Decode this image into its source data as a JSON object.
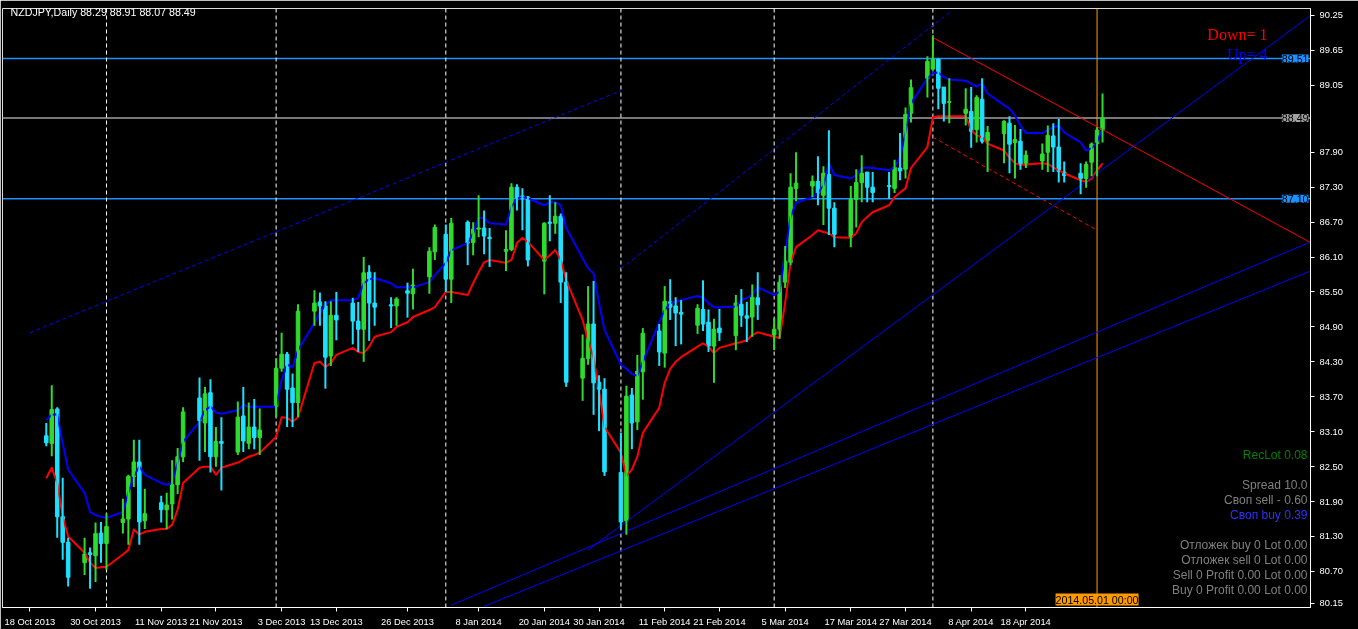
{
  "chart_data": {
    "type": "candlestick",
    "title": "NZDJPY,Daily 88.29 88.91 88.07 88.49",
    "x": [
      "2013-10-21",
      "2013-10-22",
      "2013-10-23",
      "2013-10-24",
      "2013-10-25",
      "2013-10-28",
      "2013-10-29",
      "2013-10-30",
      "2013-10-31",
      "2013-11-01",
      "2013-11-04",
      "2013-11-05",
      "2013-11-06",
      "2013-11-07",
      "2013-11-08",
      "2013-11-11",
      "2013-11-12",
      "2013-11-13",
      "2013-11-14",
      "2013-11-15",
      "2013-11-18",
      "2013-11-19",
      "2013-11-20",
      "2013-11-21",
      "2013-11-22",
      "2013-11-25",
      "2013-11-26",
      "2013-11-27",
      "2013-11-28",
      "2013-11-29",
      "2013-12-02",
      "2013-12-03",
      "2013-12-04",
      "2013-12-05",
      "2013-12-06",
      "2013-12-09",
      "2013-12-10",
      "2013-12-11",
      "2013-12-12",
      "2013-12-13",
      "2013-12-16",
      "2013-12-17",
      "2013-12-18",
      "2013-12-19",
      "2013-12-20",
      "2013-12-23",
      "2013-12-24",
      "2013-12-26",
      "2013-12-27",
      "2013-12-30",
      "2013-12-31",
      "2014-01-02",
      "2014-01-03",
      "2014-01-06",
      "2014-01-07",
      "2014-01-08",
      "2014-01-09",
      "2014-01-10",
      "2014-01-13",
      "2014-01-14",
      "2014-01-15",
      "2014-01-16",
      "2014-01-17",
      "2014-01-20",
      "2014-01-21",
      "2014-01-22",
      "2014-01-23",
      "2014-01-24",
      "2014-01-27",
      "2014-01-28",
      "2014-01-29",
      "2014-01-30",
      "2014-01-31",
      "2014-02-03",
      "2014-02-04",
      "2014-02-05",
      "2014-02-06",
      "2014-02-07",
      "2014-02-10",
      "2014-02-11",
      "2014-02-12",
      "2014-02-13",
      "2014-02-14",
      "2014-02-17",
      "2014-02-18",
      "2014-02-19",
      "2014-02-20",
      "2014-02-21",
      "2014-02-24",
      "2014-02-25",
      "2014-02-26",
      "2014-02-27",
      "2014-02-28",
      "2014-03-03",
      "2014-03-04",
      "2014-03-05",
      "2014-03-06",
      "2014-03-07",
      "2014-03-10",
      "2014-03-11",
      "2014-03-12",
      "2014-03-13",
      "2014-03-14",
      "2014-03-17",
      "2014-03-18",
      "2014-03-19",
      "2014-03-20",
      "2014-03-21",
      "2014-03-24",
      "2014-03-25",
      "2014-03-26",
      "2014-03-27",
      "2014-03-28",
      "2014-03-31",
      "2014-04-01",
      "2014-04-02",
      "2014-04-03",
      "2014-04-04",
      "2014-04-07",
      "2014-04-08",
      "2014-04-09",
      "2014-04-10",
      "2014-04-11",
      "2014-04-14",
      "2014-04-15",
      "2014-04-16",
      "2014-04-17",
      "2014-04-18",
      "2014-04-21",
      "2014-04-22",
      "2014-04-23",
      "2014-04-24",
      "2014-04-25",
      "2014-04-28",
      "2014-04-29",
      "2014-04-30",
      "2014-05-01",
      "2014-05-02"
    ],
    "ohlc": [
      [
        83.03,
        83.25,
        82.85,
        82.91
      ],
      [
        82.9,
        83.9,
        82.68,
        83.48
      ],
      [
        83.49,
        83.52,
        81.28,
        81.64
      ],
      [
        81.64,
        82.31,
        80.9,
        81.2
      ],
      [
        81.2,
        81.28,
        80.44,
        80.6
      ],
      [
        80.85,
        81.28,
        80.64,
        81.0
      ],
      [
        81.02,
        81.11,
        80.4,
        80.99
      ],
      [
        80.97,
        81.54,
        80.52,
        81.35
      ],
      [
        81.36,
        81.55,
        80.85,
        81.18
      ],
      [
        81.18,
        81.7,
        80.73,
        81.47
      ],
      [
        81.54,
        81.95,
        81.35,
        81.6
      ],
      [
        81.6,
        82.36,
        81.16,
        82.33
      ],
      [
        82.33,
        82.96,
        82.15,
        82.58
      ],
      [
        82.58,
        82.96,
        81.16,
        81.55
      ],
      [
        81.57,
        82.12,
        81.43,
        81.69
      ],
      [
        81.88,
        82.0,
        81.54,
        81.76
      ],
      [
        81.76,
        82.05,
        81.43,
        81.84
      ],
      [
        81.86,
        82.61,
        81.59,
        82.19
      ],
      [
        82.19,
        82.82,
        82.03,
        82.67
      ],
      [
        82.67,
        83.52,
        82.58,
        83.44
      ],
      [
        83.68,
        84.03,
        82.6,
        83.29
      ],
      [
        83.25,
        83.87,
        82.75,
        83.75
      ],
      [
        83.77,
        84.0,
        82.4,
        82.67
      ],
      [
        82.67,
        83.18,
        82.5,
        82.93
      ],
      [
        82.93,
        83.35,
        82.09,
        82.9
      ],
      [
        82.75,
        83.62,
        82.7,
        83.35
      ],
      [
        83.37,
        83.87,
        82.75,
        82.94
      ],
      [
        82.9,
        83.6,
        82.8,
        83.18
      ],
      [
        83.18,
        83.66,
        82.8,
        83.0
      ],
      [
        83.0,
        83.5,
        82.7,
        83.13
      ],
      [
        83.53,
        84.36,
        83.35,
        84.19
      ],
      [
        84.19,
        84.8,
        84.13,
        84.43
      ],
      [
        84.43,
        84.47,
        83.18,
        83.83
      ],
      [
        83.85,
        84.1,
        83.18,
        83.6
      ],
      [
        83.6,
        85.29,
        83.35,
        85.17
      ],
      [
        85.17,
        85.53,
        84.92,
        85.31
      ],
      [
        85.33,
        85.49,
        84.92,
        85.26
      ],
      [
        85.26,
        85.34,
        83.84,
        84.38
      ],
      [
        84.4,
        85.34,
        84.23,
        85.1
      ],
      [
        85.1,
        85.5,
        84.67,
        85.02
      ],
      [
        85.31,
        85.4,
        84.6,
        85.0
      ],
      [
        85.0,
        85.33,
        84.47,
        84.86
      ],
      [
        84.86,
        86.1,
        84.3,
        85.83
      ],
      [
        85.84,
        85.96,
        84.66,
        85.31
      ],
      [
        85.31,
        85.84,
        84.92,
        85.24
      ],
      [
        85.28,
        85.41,
        84.88,
        85.26
      ],
      [
        85.26,
        85.41,
        84.92,
        85.38
      ],
      [
        85.52,
        85.66,
        85.06,
        85.48
      ],
      [
        85.47,
        85.9,
        85.2,
        85.62
      ],
      [
        85.76,
        86.27,
        85.47,
        86.2
      ],
      [
        86.19,
        86.66,
        86.05,
        86.61
      ],
      [
        86.49,
        86.66,
        85.5,
        85.72
      ],
      [
        85.72,
        86.77,
        85.31,
        86.68
      ],
      [
        86.7,
        86.73,
        85.96,
        86.34
      ],
      [
        86.35,
        86.7,
        86.13,
        86.58
      ],
      [
        86.58,
        87.16,
        86.44,
        86.6
      ],
      [
        86.6,
        86.9,
        86.15,
        86.46
      ],
      [
        86.44,
        86.6,
        85.93,
        86.42
      ],
      [
        86.2,
        86.56,
        85.86,
        86.23
      ],
      [
        86.23,
        87.37,
        86.2,
        87.3
      ],
      [
        87.3,
        87.35,
        86.9,
        87.11
      ],
      [
        87.15,
        87.28,
        86.56,
        87.1
      ],
      [
        87.13,
        87.15,
        85.94,
        86.05
      ],
      [
        86.03,
        86.7,
        85.46,
        86.68
      ],
      [
        86.7,
        87.16,
        86.37,
        86.68
      ],
      [
        86.68,
        87.04,
        86.5,
        86.8
      ],
      [
        86.8,
        86.85,
        85.31,
        85.67
      ],
      [
        85.67,
        85.84,
        83.87,
        83.95
      ],
      [
        84.02,
        84.77,
        83.63,
        84.36
      ],
      [
        84.36,
        85.6,
        84.25,
        84.95
      ],
      [
        84.95,
        85.69,
        83.39,
        83.94
      ],
      [
        83.95,
        84.07,
        83.11,
        83.83
      ],
      [
        83.83,
        84.02,
        82.34,
        82.41
      ],
      [
        82.4,
        83.08,
        81.42,
        81.55
      ],
      [
        81.57,
        83.89,
        81.33,
        83.71
      ],
      [
        83.73,
        83.85,
        82.8,
        83.25
      ],
      [
        83.27,
        84.42,
        83.13,
        84.14
      ],
      [
        84.13,
        84.88,
        83.65,
        84.79
      ],
      [
        84.83,
        84.95,
        84.23,
        84.47
      ],
      [
        84.45,
        85.6,
        84.2,
        85.34
      ],
      [
        85.33,
        85.72,
        85.02,
        85.24
      ],
      [
        85.26,
        85.41,
        84.57,
        85.14
      ],
      [
        85.15,
        85.36,
        84.6,
        85.12
      ],
      [
        84.93,
        85.29,
        84.78,
        85.22
      ],
      [
        85.2,
        85.7,
        84.83,
        84.95
      ],
      [
        84.98,
        85.2,
        84.47,
        84.57
      ],
      [
        84.57,
        85.04,
        83.94,
        84.86
      ],
      [
        84.88,
        85.21,
        84.66,
        84.8
      ],
      [
        84.75,
        85.45,
        84.5,
        85.31
      ],
      [
        85.29,
        85.55,
        84.9,
        85.1
      ],
      [
        85.09,
        85.33,
        84.64,
        85.05
      ],
      [
        85.07,
        85.63,
        84.73,
        85.41
      ],
      [
        85.4,
        85.84,
        85.02,
        85.28
      ],
      [
        84.76,
        85.05,
        84.5,
        84.86
      ],
      [
        84.86,
        85.79,
        84.7,
        85.67
      ],
      [
        85.67,
        86.29,
        85.57,
        86.03
      ],
      [
        86.01,
        87.54,
        85.96,
        87.3
      ],
      [
        87.28,
        87.9,
        87.06,
        87.37
      ],
      [
        87.32,
        87.5,
        87.13,
        87.4
      ],
      [
        87.4,
        87.83,
        86.99,
        87.2
      ],
      [
        87.16,
        87.66,
        86.65,
        87.54
      ],
      [
        87.52,
        88.28,
        86.48,
        86.94
      ],
      [
        86.94,
        87.04,
        86.27,
        86.49
      ],
      [
        86.44,
        87.32,
        86.27,
        87.09
      ],
      [
        87.09,
        87.61,
        86.61,
        87.38
      ],
      [
        87.38,
        87.85,
        87.04,
        87.54
      ],
      [
        87.56,
        87.56,
        87.04,
        87.3
      ],
      [
        87.3,
        87.56,
        87.04,
        87.21
      ],
      [
        87.33,
        87.56,
        87.1,
        87.31
      ],
      [
        87.28,
        87.77,
        87.2,
        87.64
      ],
      [
        87.63,
        88.23,
        87.42,
        87.58
      ],
      [
        87.61,
        88.67,
        87.45,
        88.55
      ],
      [
        88.57,
        89.15,
        88.41,
        89.01
      ],
      [
        89.17,
        89.55,
        88.84,
        89.46
      ],
      [
        89.33,
        89.91,
        89.3,
        89.5
      ],
      [
        89.5,
        89.51,
        88.64,
        89.0
      ],
      [
        89.02,
        89.02,
        88.43,
        88.74
      ],
      [
        88.76,
        89.17,
        88.4,
        88.77
      ],
      [
        88.57,
        89.0,
        88.36,
        88.64
      ],
      [
        88.6,
        89.02,
        87.98,
        88.26
      ],
      [
        88.29,
        88.88,
        88.07,
        88.84
      ],
      [
        88.81,
        89.17,
        88.05,
        88.09
      ],
      [
        88.1,
        88.35,
        87.56,
        88.24
      ],
      [
        88.22,
        88.45,
        87.71,
        88.43
      ],
      [
        88.4,
        88.52,
        87.54,
        88.04
      ],
      [
        88.07,
        88.37,
        87.45,
        88.12
      ],
      [
        88.09,
        88.3,
        87.6,
        87.69
      ],
      [
        87.68,
        87.93,
        87.63,
        87.85
      ],
      [
        87.75,
        88.05,
        87.6,
        87.87
      ],
      [
        87.9,
        88.36,
        87.56,
        88.19
      ],
      [
        88.18,
        88.4,
        87.56,
        87.99
      ],
      [
        87.99,
        88.47,
        87.38,
        87.57
      ],
      [
        87.56,
        87.74,
        87.38,
        87.5
      ],
      [
        87.54,
        87.71,
        87.18,
        87.45
      ],
      [
        87.45,
        87.74,
        87.29,
        87.69
      ],
      [
        87.73,
        88.07,
        87.49,
        88.04
      ],
      [
        88.05,
        88.33,
        87.49,
        88.28
      ],
      [
        88.29,
        88.91,
        88.07,
        88.49
      ]
    ],
    "colors": [
      "#1ee0ff",
      "#2edb2e",
      "#1ee0ff",
      "#1ee0ff",
      "#1ee0ff",
      "#2edb2e",
      "#1ee0ff",
      "#2edb2e",
      "#1ee0ff",
      "#2edb2e",
      "#2edb2e",
      "#2edb2e",
      "#2edb2e",
      "#1ee0ff",
      "#2edb2e",
      "#1ee0ff",
      "#2edb2e",
      "#2edb2e",
      "#2edb2e",
      "#2edb2e",
      "#1ee0ff",
      "#2edb2e",
      "#1ee0ff",
      "#2edb2e",
      "#1ee0ff",
      "#2edb2e",
      "#1ee0ff",
      "#2edb2e",
      "#1ee0ff",
      "#2edb2e",
      "#2edb2e",
      "#2edb2e",
      "#1ee0ff",
      "#1ee0ff",
      "#2edb2e",
      "#2edb2e",
      "#1ee0ff",
      "#1ee0ff",
      "#2edb2e",
      "#1ee0ff",
      "#1ee0ff",
      "#1ee0ff",
      "#2edb2e",
      "#1ee0ff",
      "#1ee0ff",
      "#1ee0ff",
      "#2edb2e",
      "#1ee0ff",
      "#2edb2e",
      "#2edb2e",
      "#2edb2e",
      "#1ee0ff",
      "#2edb2e",
      "#1ee0ff",
      "#2edb2e",
      "#2edb2e",
      "#1ee0ff",
      "#1ee0ff",
      "#2edb2e",
      "#2edb2e",
      "#1ee0ff",
      "#1ee0ff",
      "#1ee0ff",
      "#2edb2e",
      "#1ee0ff",
      "#2edb2e",
      "#1ee0ff",
      "#1ee0ff",
      "#2edb2e",
      "#2edb2e",
      "#1ee0ff",
      "#1ee0ff",
      "#1ee0ff",
      "#1ee0ff",
      "#2edb2e",
      "#1ee0ff",
      "#2edb2e",
      "#2edb2e",
      "#1ee0ff",
      "#2edb2e",
      "#1ee0ff",
      "#1ee0ff",
      "#1ee0ff",
      "#2edb2e",
      "#1ee0ff",
      "#1ee0ff",
      "#2edb2e",
      "#1ee0ff",
      "#2edb2e",
      "#1ee0ff",
      "#1ee0ff",
      "#2edb2e",
      "#1ee0ff",
      "#2edb2e",
      "#2edb2e",
      "#2edb2e",
      "#2edb2e",
      "#2edb2e",
      "#2edb2e",
      "#1ee0ff",
      "#2edb2e",
      "#1ee0ff",
      "#1ee0ff",
      "#2edb2e",
      "#2edb2e",
      "#2edb2e",
      "#1ee0ff",
      "#1ee0ff",
      "#1ee0ff",
      "#2edb2e",
      "#1ee0ff",
      "#2edb2e",
      "#2edb2e",
      "#2edb2e",
      "#2edb2e",
      "#1ee0ff",
      "#1ee0ff",
      "#2edb2e",
      "#2edb2e",
      "#1ee0ff",
      "#2edb2e",
      "#1ee0ff",
      "#2edb2e",
      "#2edb2e",
      "#1ee0ff",
      "#2edb2e",
      "#1ee0ff",
      "#2edb2e",
      "#2edb2e",
      "#2edb2e",
      "#1ee0ff",
      "#1ee0ff",
      "#1ee0ff",
      "#1ee0ff",
      "#2edb2e",
      "#2edb2e",
      "#2edb2e",
      "#2edb2e"
    ],
    "series": [
      {
        "type": "line",
        "color": "#0000ff",
        "values": [
          83.3,
          83.39,
          83.4,
          82.9,
          82.45,
          82.05,
          81.72,
          81.67,
          81.64,
          81.62,
          81.72,
          82.05,
          82.33,
          82.5,
          82.36,
          82.22,
          82.19,
          82.22,
          82.57,
          82.93,
          83.27,
          83.47,
          83.53,
          83.43,
          83.41,
          83.47,
          83.56,
          83.53,
          83.53,
          83.53,
          83.53,
          83.99,
          84.25,
          84.21,
          84.5,
          84.97,
          85.14,
          85.28,
          85.36,
          85.36,
          85.36,
          85.4,
          85.65,
          85.72,
          85.74,
          85.65,
          85.58,
          85.58,
          85.58,
          85.67,
          85.79,
          86.0,
          86.22,
          86.34,
          86.51,
          86.77,
          86.77,
          86.68,
          86.66,
          86.96,
          87.11,
          87.13,
          87.11,
          86.99,
          87.04,
          87.04,
          86.99,
          86.6,
          86.08,
          85.91,
          85.82,
          85.31,
          84.85,
          84.25,
          84.18,
          84.09,
          84.06,
          84.3,
          84.98,
          85.19,
          85.31,
          85.33,
          85.36,
          85.43,
          85.4,
          85.31,
          85.24,
          85.24,
          85.25,
          85.36,
          85.4,
          85.45,
          85.58,
          85.45,
          85.5,
          86.17,
          86.79,
          87.03,
          87.13,
          87.2,
          87.33,
          87.71,
          87.51,
          87.45,
          87.51,
          87.63,
          87.64,
          87.63,
          87.59,
          87.64,
          87.81,
          88.24,
          88.74,
          89.17,
          89.26,
          89.27,
          89.19,
          89.15,
          89.13,
          89.08,
          89.03,
          89.08,
          88.91,
          88.71,
          88.65,
          88.53,
          88.36,
          88.23,
          88.23,
          88.28,
          88.33,
          88.36,
          88.24,
          88.07,
          87.93,
          87.97,
          88.07,
          88.31
        ]
      },
      {
        "type": "line",
        "color": "#ff0000",
        "values": [
          82.3,
          82.48,
          82.22,
          81.64,
          81.3,
          81.02,
          80.85,
          80.76,
          80.77,
          80.78,
          80.99,
          81.07,
          81.42,
          81.33,
          81.38,
          81.43,
          81.43,
          81.5,
          81.76,
          82.22,
          82.48,
          82.5,
          82.5,
          82.36,
          82.48,
          82.57,
          82.62,
          82.67,
          82.7,
          82.74,
          83.01,
          83.35,
          83.34,
          83.27,
          83.35,
          84.28,
          84.3,
          84.21,
          84.28,
          84.42,
          84.54,
          84.47,
          84.45,
          84.56,
          84.73,
          84.81,
          84.9,
          84.98,
          85.07,
          85.19,
          85.24,
          85.5,
          85.5,
          85.45,
          85.65,
          85.84,
          86.01,
          86.05,
          86.0,
          86.05,
          86.34,
          86.43,
          86.36,
          86.05,
          86.13,
          86.22,
          86.05,
          85.7,
          85.02,
          84.67,
          84.37,
          83.82,
          83.18,
          82.74,
          82.34,
          82.45,
          82.67,
          83.08,
          83.51,
          83.94,
          84.18,
          84.3,
          84.38,
          84.56,
          84.62,
          84.56,
          84.45,
          84.54,
          84.62,
          84.64,
          84.67,
          84.76,
          84.81,
          84.73,
          84.71,
          85.31,
          86.0,
          86.27,
          86.48,
          86.56,
          86.53,
          86.51,
          86.44,
          86.43,
          86.51,
          86.7,
          86.79,
          86.87,
          86.99,
          87.13,
          87.21,
          87.28,
          87.63,
          87.99,
          88.5,
          88.52,
          88.52,
          88.52,
          88.52,
          88.28,
          88.19,
          88.16,
          88.05,
          87.93,
          87.81,
          87.71,
          87.68,
          87.69,
          87.71,
          87.7,
          87.64,
          87.59,
          87.54,
          87.42,
          87.39,
          87.45,
          87.59,
          87.71
        ]
      },
      {
        "type": "line",
        "color": "#0000ff",
        "line_style": "dashed",
        "x": [
          "2013-10-18",
          "2014-02-03"
        ],
        "values": [
          84.8,
          88.96
        ]
      },
      {
        "type": "line",
        "color": "#0000ff",
        "line_style": "dashed",
        "x": [
          "2014-02-03",
          "2014-04-04"
        ],
        "values": [
          85.9,
          90.3
        ]
      },
      {
        "type": "line",
        "color": "#0000ff",
        "x": [
          "2014-01-28",
          "2014-06-09"
        ],
        "values": [
          81.07,
          90.25
        ]
      },
      {
        "type": "line",
        "color": "#0000ff",
        "x": [
          "2014-01-03",
          "2014-06-09"
        ],
        "values": [
          80.12,
          86.36
        ]
      },
      {
        "type": "line",
        "color": "#0000ff",
        "x": [
          "2014-01-09",
          "2014-06-09"
        ],
        "values": [
          80.1,
          85.86
        ]
      },
      {
        "type": "line",
        "color": "#ff0000",
        "x": [
          "2014-04-01",
          "2014-06-09"
        ],
        "values": [
          89.87,
          86.35
        ]
      },
      {
        "type": "line",
        "color": "#ff0000",
        "line_style": "dashed",
        "x": [
          "2014-04-01",
          "2014-05-01"
        ],
        "values": [
          88.16,
          86.56
        ]
      }
    ],
    "xlim": [
      "2013-10-13",
      "2014-06-09"
    ],
    "xticks": [
      {
        "value": "2013-10-18",
        "label": "18 Oct 2013"
      },
      {
        "value": "2013-10-30",
        "label": "30 Oct 2013"
      },
      {
        "value": "2013-11-11",
        "label": "11 Nov 2013"
      },
      {
        "value": "2013-11-21",
        "label": "21 Nov 2013"
      },
      {
        "value": "2013-12-03",
        "label": "3 Dec 2013"
      },
      {
        "value": "2013-12-13",
        "label": "13 Dec 2013"
      },
      {
        "value": "2013-12-26",
        "label": "26 Dec 2013"
      },
      {
        "value": "2014-01-08",
        "label": "8 Jan 2014"
      },
      {
        "value": "2014-01-20",
        "label": "20 Jan 2014"
      },
      {
        "value": "2014-01-30",
        "label": "30 Jan 2014"
      },
      {
        "value": "2014-02-11",
        "label": "11 Feb 2014"
      },
      {
        "value": "2014-02-21",
        "label": "21 Feb 2014"
      },
      {
        "value": "2014-03-05",
        "label": "5 Mar 2014"
      },
      {
        "value": "2014-03-17",
        "label": "17 Mar 2014"
      },
      {
        "value": "2014-03-27",
        "label": "27 Mar 2014"
      },
      {
        "value": "2014-04-08",
        "label": "8 Apr 2014"
      },
      {
        "value": "2014-04-18",
        "label": "18 Apr 2014"
      }
    ],
    "ylim": [
      80.08,
      90.37
    ],
    "yticks": [
      {
        "value": 80.15,
        "label": "80.15"
      },
      {
        "value": 80.7,
        "label": "80.70"
      },
      {
        "value": 81.3,
        "label": "81.30"
      },
      {
        "value": 81.9,
        "label": "81.90"
      },
      {
        "value": 82.5,
        "label": "82.50"
      },
      {
        "value": 83.1,
        "label": "83.10"
      },
      {
        "value": 83.7,
        "label": "83.70"
      },
      {
        "value": 84.3,
        "label": "84.30"
      },
      {
        "value": 84.9,
        "label": "84.90"
      },
      {
        "value": 85.5,
        "label": "85.50"
      },
      {
        "value": 86.1,
        "label": "86.10"
      },
      {
        "value": 86.7,
        "label": "86.70"
      },
      {
        "value": 87.3,
        "label": "87.30"
      },
      {
        "value": 87.9,
        "label": "87.90"
      },
      {
        "value": 89.05,
        "label": "89.05"
      },
      {
        "value": 89.65,
        "label": "89.65"
      },
      {
        "value": 90.25,
        "label": "90.25"
      }
    ],
    "ref_lines": [
      {
        "axis": "y",
        "value": 89.51,
        "label": "89.51",
        "color": "#1e90ff"
      },
      {
        "axis": "y",
        "value": 88.49,
        "label": "88.49",
        "color": "#a0a0a0"
      },
      {
        "axis": "y",
        "value": 87.1,
        "label": "87.10",
        "color": "#1e90ff"
      },
      {
        "axis": "x",
        "value": "2014-05-01",
        "label": "2014.05.01 00:00",
        "color": "#ff9900"
      },
      {
        "axis": "x",
        "value": "2013-11-01",
        "color": "#ffffff",
        "line_style": "dashed"
      },
      {
        "axis": "x",
        "value": "2013-12-02",
        "color": "#ffffff",
        "line_style": "dashed"
      },
      {
        "axis": "x",
        "value": "2014-01-02",
        "color": "#ffffff",
        "line_style": "dashed"
      },
      {
        "axis": "x",
        "value": "2014-02-03",
        "color": "#ffffff",
        "line_style": "dashed"
      },
      {
        "axis": "x",
        "value": "2014-03-03",
        "color": "#ffffff",
        "line_style": "dashed"
      },
      {
        "axis": "x",
        "value": "2014-04-01",
        "color": "#ffffff",
        "line_style": "dashed"
      }
    ],
    "annotations": [
      "Down= 1",
      "Up= 4",
      "RecLot 0.08",
      "Spread 10.0",
      "Своп sell - 0.60",
      "Своп buy 0.39",
      "Отложек buy 0 Lot 0.00",
      "Отложек sell 0 Lot 0.00",
      "Sell 0 Profit 0.00 Lot 0.00",
      "Buy 0 Profit 0.00 Lot 0.00"
    ]
  }
}
